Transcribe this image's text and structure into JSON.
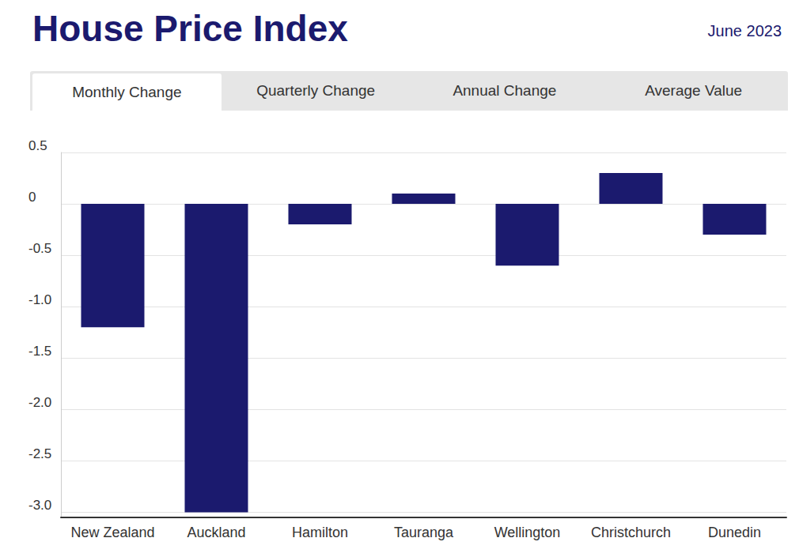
{
  "chart_data": {
    "type": "bar",
    "title": "House Price Index",
    "subtitle": "June 2023",
    "categories": [
      "New Zealand",
      "Auckland",
      "Hamilton",
      "Tauranga",
      "Wellington",
      "Christchurch",
      "Dunedin"
    ],
    "values": [
      -1.2,
      -3.0,
      -0.2,
      0.1,
      -0.6,
      0.3,
      -0.3
    ],
    "color": "#1b1a6e",
    "ylim": [
      -3.05,
      0.5
    ],
    "yticks": [
      0.5,
      0,
      -0.5,
      {
        "value": -1,
        "label": "-1.0"
      },
      -1.5,
      {
        "value": -2,
        "label": "-2.0"
      },
      -2.5,
      {
        "value": -3,
        "label": "-3.0"
      }
    ],
    "grid": true
  },
  "tabs": {
    "items": [
      "Monthly Change",
      "Quarterly Change",
      "Annual Change",
      "Average Value"
    ],
    "selected": 0
  }
}
